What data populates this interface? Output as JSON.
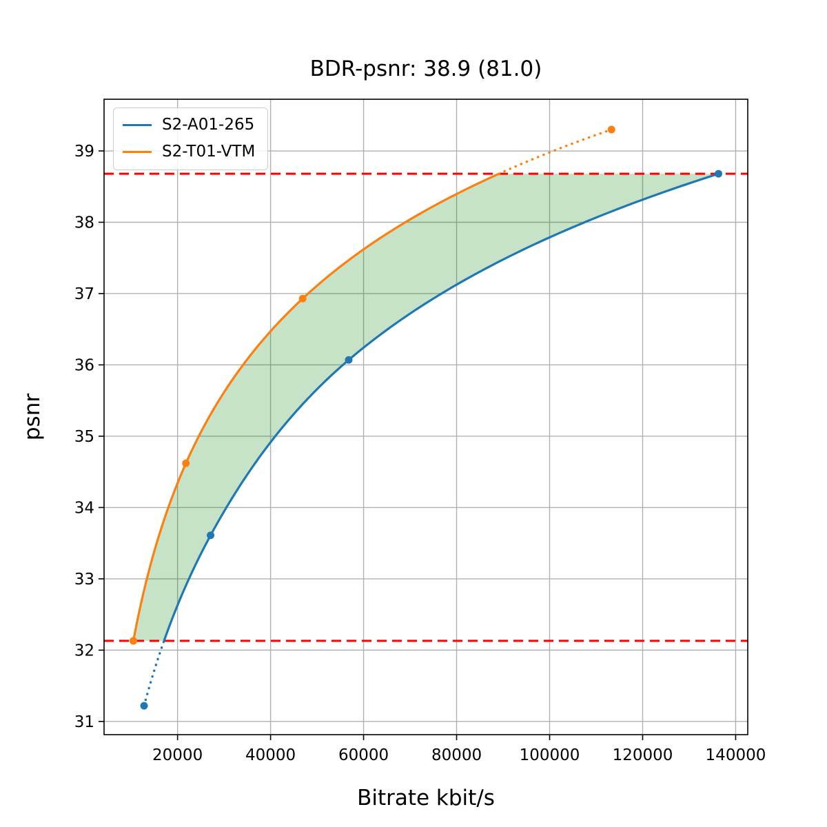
{
  "chart_data": {
    "type": "line",
    "title": "BDR-psnr: 38.9 (81.0)",
    "xlabel": "Bitrate kbit/s",
    "ylabel": "psnr",
    "xlim": [
      4200,
      142600
    ],
    "ylim": [
      30.815,
      39.725
    ],
    "x_ticks": [
      20000,
      40000,
      60000,
      80000,
      100000,
      120000,
      140000
    ],
    "y_ticks": [
      31,
      32,
      33,
      34,
      35,
      36,
      37,
      38,
      39
    ],
    "grid": true,
    "grid_color": "#b0b0b0",
    "legend_position": "upper left",
    "series": [
      {
        "name": "S2-A01-265",
        "color": "#1f77b4",
        "bitrate_kbits": [
          12800,
          27100,
          56800,
          136300
        ],
        "psnr": [
          31.22,
          33.61,
          36.07,
          38.68
        ]
      },
      {
        "name": "S2-T01-VTM",
        "color": "#ff7f0e",
        "bitrate_kbits": [
          10500,
          21800,
          46900,
          113300
        ],
        "psnr": [
          32.13,
          34.62,
          36.93,
          39.3
        ]
      }
    ],
    "overlap_region": {
      "psnr_low": 32.13,
      "psnr_high": 38.68,
      "boundary_color": "#ff0000",
      "boundary_style": "dashed",
      "fill_color": "#008000",
      "fill_opacity": 0.22
    }
  }
}
